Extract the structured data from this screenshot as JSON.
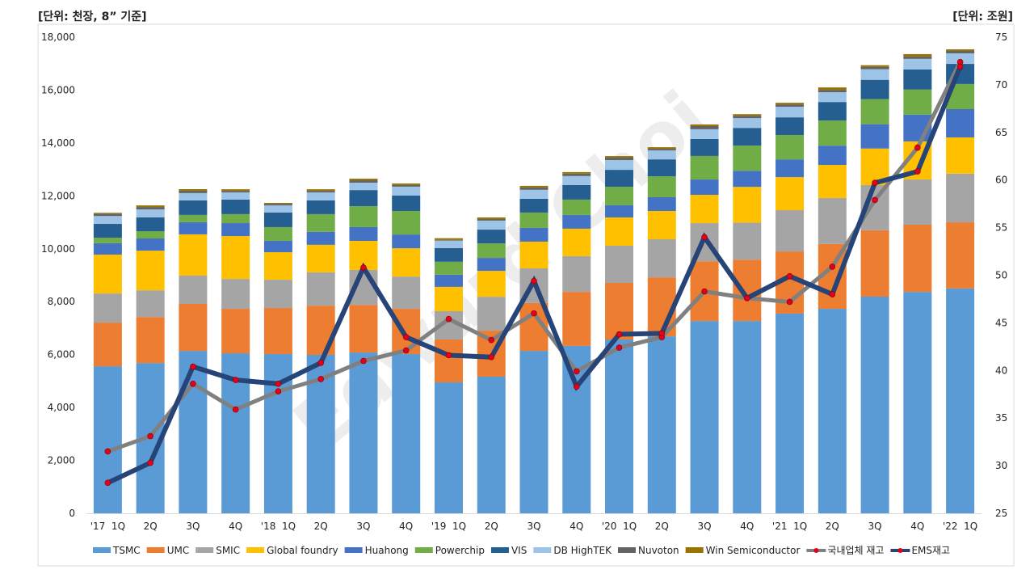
{
  "chart_data": {
    "type": "bar",
    "stacked": true,
    "left_unit_label": "[단위: 천장, 8” 기준]",
    "right_unit_label": "[단위: 조원]",
    "categories": [
      "'17  1Q",
      "2Q",
      "3Q",
      "4Q",
      "'18  1Q",
      "2Q",
      "3Q",
      "4Q",
      "'19  1Q",
      "2Q",
      "3Q",
      "4Q",
      "'20  1Q",
      "2Q",
      "3Q",
      "4Q",
      "'21  1Q",
      "2Q",
      "3Q",
      "4Q",
      "'22  1Q"
    ],
    "ylim": [
      0,
      18000
    ],
    "yticks": [
      "0",
      "2,000",
      "4,000",
      "6,000",
      "8,000",
      "10,000",
      "12,000",
      "14,000",
      "16,000",
      "18,000"
    ],
    "y2lim": [
      25,
      75
    ],
    "y2ticks": [
      "25",
      "30",
      "35",
      "40",
      "45",
      "50",
      "55",
      "60",
      "65",
      "70",
      "75"
    ],
    "grid": false,
    "legend_position": "bottom",
    "watermark": "Edward Choi",
    "series": [
      {
        "name": "TSMC",
        "color": "#5B9BD5",
        "values": [
          5560,
          5680,
          6140,
          6050,
          6020,
          5990,
          6080,
          6020,
          4950,
          5165,
          6140,
          6330,
          6570,
          6690,
          7270,
          7270,
          7550,
          7730,
          8190,
          8370,
          8500
        ]
      },
      {
        "name": "UMC",
        "color": "#ED7D31",
        "values": [
          1650,
          1740,
          1775,
          1680,
          1740,
          1860,
          1800,
          1710,
          1620,
          1740,
          1810,
          2040,
          2140,
          2230,
          2260,
          2320,
          2350,
          2450,
          2510,
          2540,
          2500
        ]
      },
      {
        "name": "SMIC",
        "color": "#A5A5A5",
        "values": [
          1100,
          1010,
          1070,
          1130,
          1070,
          1260,
          1320,
          1220,
          1070,
          1280,
          1310,
          1350,
          1405,
          1440,
          1440,
          1400,
          1560,
          1740,
          1710,
          1710,
          1840
        ]
      },
      {
        "name": "Global foundry",
        "color": "#FFC000",
        "values": [
          1470,
          1500,
          1560,
          1620,
          1040,
          1040,
          1100,
          1070,
          920,
          980,
          1010,
          1040,
          1070,
          1070,
          1070,
          1350,
          1250,
          1250,
          1380,
          1440,
          1370
        ]
      },
      {
        "name": "Huahong",
        "color": "#4472C4",
        "values": [
          430,
          460,
          460,
          490,
          430,
          490,
          520,
          520,
          460,
          490,
          520,
          520,
          460,
          520,
          580,
          610,
          670,
          730,
          920,
          1010,
          1070
        ]
      },
      {
        "name": "Powerchip",
        "color": "#70AD47",
        "values": [
          210,
          275,
          275,
          340,
          520,
          670,
          790,
          890,
          490,
          550,
          580,
          580,
          700,
          790,
          890,
          950,
          920,
          950,
          950,
          950,
          950
        ]
      },
      {
        "name": "VIS",
        "color": "#255E91",
        "values": [
          520,
          520,
          550,
          550,
          550,
          520,
          610,
          580,
          520,
          520,
          520,
          550,
          640,
          640,
          640,
          670,
          670,
          700,
          730,
          760,
          760
        ]
      },
      {
        "name": "DB HighTEK",
        "color": "#9DC3E6",
        "values": [
          300,
          305,
          275,
          270,
          270,
          300,
          280,
          340,
          280,
          340,
          340,
          340,
          370,
          340,
          370,
          370,
          400,
          370,
          400,
          400,
          400
        ]
      },
      {
        "name": "Nuvoton",
        "color": "#636363",
        "values": [
          90,
          90,
          90,
          60,
          60,
          60,
          90,
          60,
          30,
          60,
          90,
          90,
          90,
          60,
          120,
          90,
          90,
          90,
          90,
          90,
          90
        ]
      },
      {
        "name": "Win Semiconductor",
        "color": "#997300",
        "values": [
          30,
          60,
          60,
          60,
          35,
          60,
          60,
          60,
          60,
          60,
          60,
          60,
          60,
          60,
          60,
          60,
          60,
          90,
          60,
          90,
          60
        ]
      }
    ],
    "line_series": [
      {
        "name": "국내업체 재고",
        "axis": "right",
        "color": "#808080",
        "marker_color": "#E3001B",
        "values": [
          31.5,
          33.1,
          38.6,
          35.9,
          37.8,
          39.1,
          41.0,
          42.1,
          45.4,
          43.2,
          46.0,
          39.9,
          42.4,
          43.5,
          48.3,
          47.6,
          47.2,
          50.9,
          57.9,
          63.4,
          72.4
        ]
      },
      {
        "name": "EMS재고",
        "axis": "right",
        "color": "#264478",
        "marker_color": "#E3001B",
        "values": [
          28.2,
          30.3,
          40.4,
          39.0,
          38.6,
          40.8,
          50.8,
          43.5,
          41.6,
          41.4,
          49.4,
          38.3,
          43.8,
          43.9,
          54.0,
          47.6,
          49.9,
          48.0,
          59.7,
          60.9,
          71.9
        ]
      }
    ]
  }
}
